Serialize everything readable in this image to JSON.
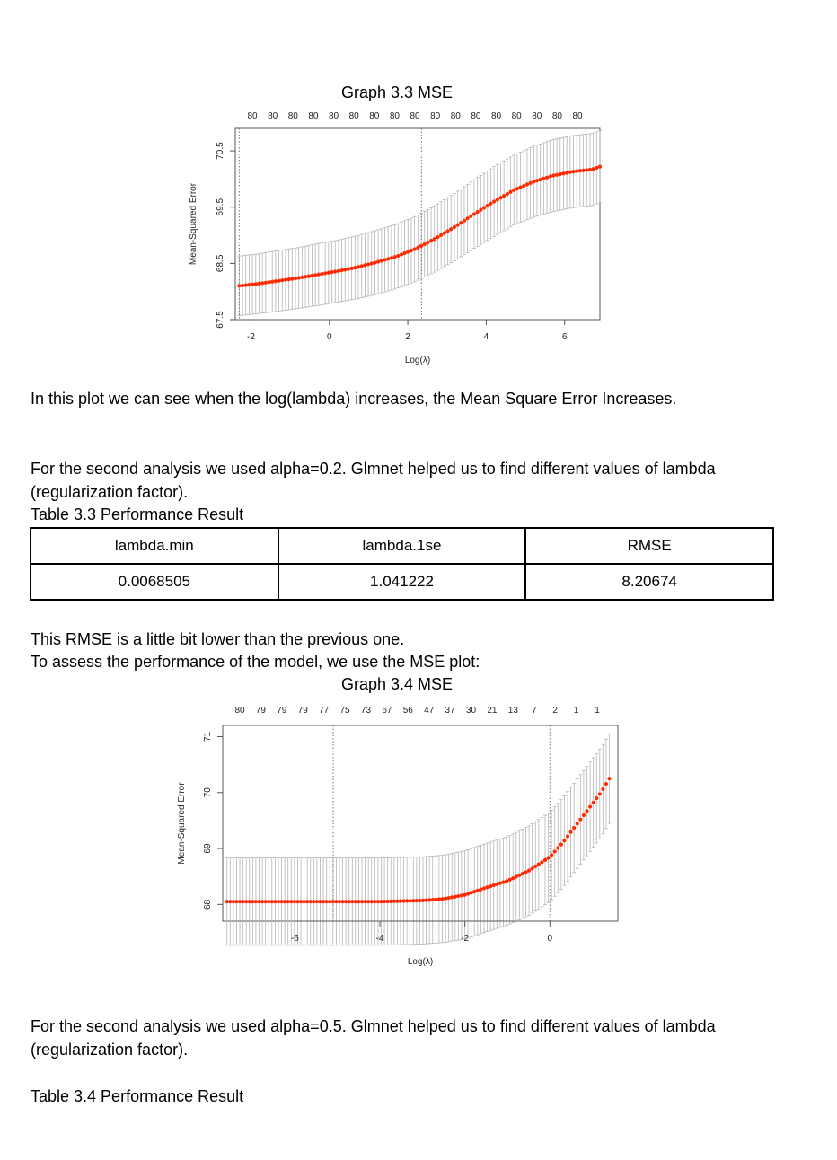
{
  "graph33": {
    "title": "Graph 3.3 MSE",
    "top_labels": [
      "80",
      "80",
      "80",
      "80",
      "80",
      "80",
      "80",
      "80",
      "80",
      "80",
      "80",
      "80",
      "80",
      "80",
      "80",
      "80",
      "80"
    ],
    "x_ticks": [
      "-2",
      "0",
      "2",
      "4",
      "6"
    ],
    "y_ticks": [
      "67.5",
      "68.5",
      "69.5",
      "70.5"
    ],
    "xlabel": "Log(λ)",
    "ylabel": "Mean-Squared Error"
  },
  "para1": "In this plot we can see when the log(lambda) increases, the Mean Square Error Increases.",
  "para2_line1": "For the second analysis we used alpha=0.2. Glmnet helped us to find different values of lambda",
  "para2_line2": "(regularization factor).",
  "table33": {
    "caption": "Table 3.3  Performance Result",
    "headers": [
      "lambda.min",
      "lambda.1se",
      "RMSE"
    ],
    "values": [
      "0.0068505",
      "1.041222",
      "8.20674"
    ]
  },
  "para3_line1": "This RMSE is a little bit lower than the previous one.",
  "para3_line2": "To assess the performance of the model, we use the MSE plot:",
  "graph34": {
    "title": "Graph 3.4 MSE",
    "top_labels": [
      "80",
      "79",
      "79",
      "79",
      "77",
      "75",
      "73",
      "67",
      "56",
      "47",
      "37",
      "30",
      "21",
      "13",
      "7",
      "2",
      "1",
      "1"
    ],
    "x_ticks": [
      "-6",
      "-4",
      "-2",
      "0"
    ],
    "y_ticks": [
      "68",
      "69",
      "70",
      "71"
    ],
    "xlabel": "Log(λ)",
    "ylabel": "Mean-Squared Error"
  },
  "para4_line1": "For the second analysis we used alpha=0.5. Glmnet helped us to find different values of lambda",
  "para4_line2": "(regularization factor).",
  "table34_caption": "Table 3.4  Performance Result",
  "chart_data": [
    {
      "type": "scatter",
      "title": "Graph 3.3 MSE",
      "xlabel": "Log(λ)",
      "ylabel": "Mean-Squared Error",
      "xlim": [
        -2.4,
        6.9
      ],
      "ylim": [
        67.5,
        70.9
      ],
      "x_ticks": [
        -2,
        0,
        2,
        4,
        6
      ],
      "y_ticks": [
        67.5,
        68.5,
        69.5,
        70.5
      ],
      "x": [
        -2.3,
        -1.8,
        -1.3,
        -0.8,
        -0.3,
        0.2,
        0.7,
        1.2,
        1.7,
        2.2,
        2.7,
        3.2,
        3.7,
        4.2,
        4.7,
        5.2,
        5.7,
        6.2,
        6.7,
        6.9
      ],
      "y": [
        68.1,
        68.14,
        68.19,
        68.24,
        68.3,
        68.36,
        68.43,
        68.52,
        68.62,
        68.76,
        68.94,
        69.15,
        69.38,
        69.6,
        69.8,
        69.95,
        70.06,
        70.13,
        70.17,
        70.22
      ],
      "error_bar": [
        0.53,
        0.53,
        0.54,
        0.54,
        0.55,
        0.55,
        0.56,
        0.57,
        0.57,
        0.58,
        0.59,
        0.6,
        0.61,
        0.62,
        0.62,
        0.63,
        0.64,
        0.64,
        0.64,
        0.64
      ],
      "vlines": [
        -2.3,
        2.35
      ],
      "point_color": "#ff2a00",
      "bar_color": "#b5b5b5"
    },
    {
      "type": "scatter",
      "title": "Graph 3.4 MSE",
      "xlabel": "Log(λ)",
      "ylabel": "Mean-Squared Error",
      "xlim": [
        -7.7,
        1.6
      ],
      "ylim": [
        67.7,
        71.2
      ],
      "x_ticks": [
        -6,
        -4,
        -2,
        0
      ],
      "y_ticks": [
        68,
        69,
        70,
        71
      ],
      "x": [
        -7.6,
        -7.0,
        -6.5,
        -6.0,
        -5.5,
        -5.0,
        -4.5,
        -4.0,
        -3.5,
        -3.0,
        -2.5,
        -2.0,
        -1.5,
        -1.0,
        -0.5,
        0.0,
        0.3,
        0.6,
        0.9,
        1.2,
        1.4
      ],
      "y": [
        68.05,
        68.05,
        68.05,
        68.05,
        68.05,
        68.05,
        68.05,
        68.05,
        68.06,
        68.07,
        68.1,
        68.17,
        68.3,
        68.42,
        68.6,
        68.85,
        69.1,
        69.4,
        69.7,
        70.0,
        70.25
      ],
      "error_bar": [
        0.78,
        0.78,
        0.78,
        0.78,
        0.78,
        0.78,
        0.78,
        0.78,
        0.78,
        0.78,
        0.78,
        0.79,
        0.79,
        0.79,
        0.8,
        0.8,
        0.8,
        0.8,
        0.8,
        0.8,
        0.8
      ],
      "vlines": [
        -5.1,
        0.0
      ],
      "point_color": "#ff2a00",
      "bar_color": "#b5b5b5"
    }
  ]
}
